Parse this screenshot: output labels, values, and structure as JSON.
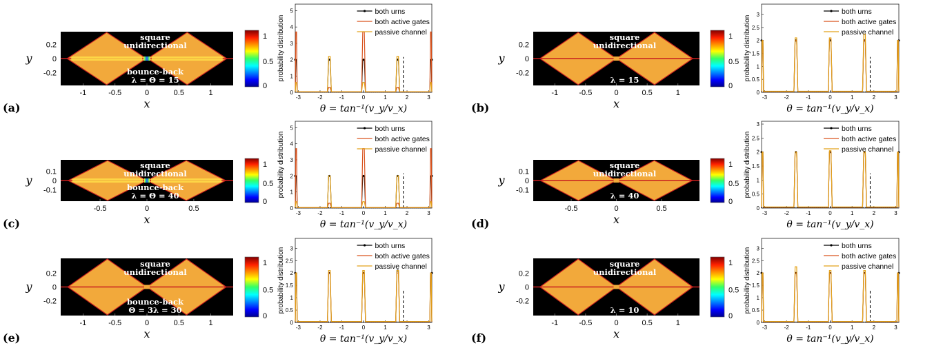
{
  "colors": {
    "background": "#000000",
    "cavity_fill": "#f2a93b",
    "cavity_edge": "#c81e1e",
    "urns_line": "#000000",
    "gates_line": "#d9531e",
    "channel_line": "#e3a21a",
    "dashed_line": "#000000"
  },
  "colorbar": {
    "ticks": [
      "1",
      "0.5",
      "0"
    ]
  },
  "panels": [
    {
      "label": "a",
      "heatmap": {
        "ylabel": "y",
        "xlabel": "x",
        "xticks": [
          "-1",
          "-0.5",
          "0",
          "0.5",
          "1"
        ],
        "yticks": [
          "0.2",
          "0",
          "-0.2"
        ],
        "text_top_1": "square",
        "text_top_2": "unidirectional",
        "text_bottom_1": "bounce-back",
        "text_bottom_2": "λ = Θ = 15",
        "channel": "hot"
      },
      "dist": {
        "ylabel": "probability distribution",
        "xlabel": "θ = tan⁻¹(v_y/v_x)",
        "xticks": [
          "-3",
          "-2",
          "-1",
          "0",
          "1",
          "2",
          "3"
        ],
        "yticks": [
          "0",
          "1",
          "2",
          "3",
          "4",
          "5"
        ],
        "legend": [
          "both urns",
          "both active gates",
          "passive channel"
        ]
      }
    },
    {
      "label": "b",
      "heatmap": {
        "ylabel": "y",
        "xlabel": "x",
        "xticks": [
          "-1",
          "-0.5",
          "0",
          "0.5",
          "1"
        ],
        "yticks": [
          "0.2",
          "0",
          "-0.2"
        ],
        "text_top_1": "square",
        "text_top_2": "unidirectional",
        "text_bottom_1": "",
        "text_bottom_2": "λ = 15",
        "channel": "flat"
      },
      "dist": {
        "ylabel": "probability distribution",
        "xlabel": "θ = tan⁻¹(v_y/v_x)",
        "xticks": [
          "-3",
          "-2",
          "-1",
          "0",
          "1",
          "2",
          "3"
        ],
        "yticks": [
          "0",
          "0.5",
          "1",
          "1.5",
          "2",
          "2.5",
          "3"
        ],
        "legend": [
          "both urns",
          "both active gates",
          "passive channel"
        ]
      }
    },
    {
      "label": "c",
      "heatmap": {
        "ylabel": "y",
        "xlabel": "x",
        "xticks": [
          "-0.5",
          "0",
          "0.5"
        ],
        "yticks": [
          "0.1",
          "0",
          "-0.1"
        ],
        "text_top_1": "square",
        "text_top_2": "unidirectional",
        "text_bottom_1": "bounce-back",
        "text_bottom_2": "λ = Θ = 40",
        "channel": "hot"
      },
      "dist": {
        "ylabel": "probability distribution",
        "xlabel": "θ = tan⁻¹(v_y/v_x)",
        "xticks": [
          "-3",
          "-2",
          "-1",
          "0",
          "1",
          "2",
          "3"
        ],
        "yticks": [
          "0",
          "1",
          "2",
          "3",
          "4",
          "5"
        ],
        "legend": [
          "both urns",
          "both active gates",
          "passive channel"
        ]
      }
    },
    {
      "label": "d",
      "heatmap": {
        "ylabel": "y",
        "xlabel": "x",
        "xticks": [
          "-0.5",
          "0",
          "0.5"
        ],
        "yticks": [
          "0.1",
          "0",
          "-0.1"
        ],
        "text_top_1": "square",
        "text_top_2": "unidirectional",
        "text_bottom_1": "",
        "text_bottom_2": "λ = 40",
        "channel": "flat"
      },
      "dist": {
        "ylabel": "probability distribution",
        "xlabel": "θ = tan⁻¹(v_y/v_x)",
        "xticks": [
          "-3",
          "-2",
          "-1",
          "0",
          "1",
          "2",
          "3"
        ],
        "yticks": [
          "0",
          "0.5",
          "1",
          "1.5",
          "2",
          "2.5",
          "3"
        ],
        "legend": [
          "both urns",
          "both active gates",
          "passive channel"
        ]
      }
    },
    {
      "label": "e",
      "heatmap": {
        "ylabel": "y",
        "xlabel": "x",
        "xticks": [
          "-1",
          "-0.5",
          "0",
          "0.5",
          "1"
        ],
        "yticks": [
          "0.2",
          "0",
          "-0.2"
        ],
        "text_top_1": "square",
        "text_top_2": "unidirectional",
        "text_bottom_1": "bounce-back",
        "text_bottom_2": "Θ = 3λ = 30",
        "channel": "flat"
      },
      "dist": {
        "ylabel": "probability distribution",
        "xlabel": "θ = tan⁻¹(v_y/v_x)",
        "xticks": [
          "-3",
          "-2",
          "-1",
          "0",
          "1",
          "2",
          "3"
        ],
        "yticks": [
          "0",
          "0.5",
          "1",
          "1.5",
          "2",
          "2.5",
          "3"
        ],
        "legend": [
          "both urns",
          "both active gates",
          "passive channel"
        ]
      }
    },
    {
      "label": "f",
      "heatmap": {
        "ylabel": "y",
        "xlabel": "x",
        "xticks": [
          "-1",
          "-0.5",
          "0",
          "0.5",
          "1"
        ],
        "yticks": [
          "0.2",
          "0",
          "-0.2"
        ],
        "text_top_1": "square",
        "text_top_2": "unidirectional",
        "text_bottom_1": "",
        "text_bottom_2": "λ = 10",
        "channel": "flat"
      },
      "dist": {
        "ylabel": "probability distribution",
        "xlabel": "θ = tan⁻¹(v_y/v_x)",
        "xticks": [
          "-3",
          "-2",
          "-1",
          "0",
          "1",
          "2",
          "3"
        ],
        "yticks": [
          "0",
          "0.5",
          "1",
          "1.5",
          "2",
          "2.5",
          "3"
        ],
        "legend": [
          "both urns",
          "both active gates",
          "passive channel"
        ]
      }
    }
  ],
  "chart_data": [
    {
      "panel": "a",
      "type": "line",
      "xlabel": "θ = tan⁻¹(v_y/v_x)",
      "ylabel": "probability distribution",
      "xlim": [
        -3.1416,
        3.1416
      ],
      "ylim": [
        0,
        5.4
      ],
      "vline": 1.83,
      "series": [
        {
          "name": "both urns",
          "peaks": [
            [
              -3.1416,
              2.0
            ],
            [
              -1.5708,
              2.0
            ],
            [
              0,
              2.0
            ],
            [
              1.5708,
              2.0
            ],
            [
              3.1416,
              2.0
            ]
          ]
        },
        {
          "name": "both active gates",
          "peaks": [
            [
              -3.1416,
              3.7
            ],
            [
              -1.5708,
              0.3
            ],
            [
              0,
              3.7
            ],
            [
              1.5708,
              0.3
            ],
            [
              3.1416,
              3.7
            ]
          ]
        },
        {
          "name": "passive channel",
          "peaks": [
            [
              -3.1416,
              0.6
            ],
            [
              -1.5708,
              2.2
            ],
            [
              0,
              0.6
            ],
            [
              1.5708,
              2.2
            ],
            [
              3.1416,
              0.6
            ]
          ]
        }
      ]
    },
    {
      "panel": "b",
      "type": "line",
      "xlabel": "θ = tan⁻¹(v_y/v_x)",
      "ylabel": "probability distribution",
      "xlim": [
        -3.1416,
        3.1416
      ],
      "ylim": [
        0,
        3.4
      ],
      "vline": 1.83,
      "series": [
        {
          "name": "both urns",
          "peaks": [
            [
              -3.1416,
              2.0
            ],
            [
              -1.5708,
              2.0
            ],
            [
              0,
              2.0
            ],
            [
              1.5708,
              2.0
            ],
            [
              3.1416,
              2.0
            ]
          ]
        },
        {
          "name": "both active gates",
          "peaks": [
            [
              -3.1416,
              2.0
            ],
            [
              -1.5708,
              2.0
            ],
            [
              0,
              2.05
            ],
            [
              1.5708,
              2.0
            ],
            [
              3.1416,
              2.0
            ]
          ]
        },
        {
          "name": "passive channel",
          "peaks": [
            [
              -3.1416,
              2.0
            ],
            [
              -1.5708,
              2.1
            ],
            [
              0,
              2.1
            ],
            [
              1.5708,
              2.25
            ],
            [
              3.1416,
              2.0
            ]
          ]
        }
      ]
    },
    {
      "panel": "c",
      "type": "line",
      "xlabel": "θ = tan⁻¹(v_y/v_x)",
      "ylabel": "probability distribution",
      "xlim": [
        -3.1416,
        3.1416
      ],
      "ylim": [
        0,
        5.4
      ],
      "vline": 1.83,
      "series": [
        {
          "name": "both urns",
          "peaks": [
            [
              -3.1416,
              2.0
            ],
            [
              -1.5708,
              2.0
            ],
            [
              0,
              2.0
            ],
            [
              1.5708,
              2.0
            ],
            [
              3.1416,
              2.0
            ]
          ]
        },
        {
          "name": "both active gates",
          "peaks": [
            [
              -3.1416,
              3.7
            ],
            [
              -1.5708,
              0.3
            ],
            [
              0,
              3.7
            ],
            [
              1.5708,
              0.3
            ],
            [
              3.1416,
              3.7
            ]
          ]
        },
        {
          "name": "passive channel",
          "peaks": [
            [
              -3.1416,
              0.4
            ],
            [
              -1.5708,
              2.0
            ],
            [
              0,
              0.4
            ],
            [
              1.5708,
              2.0
            ],
            [
              3.1416,
              0.4
            ]
          ]
        }
      ]
    },
    {
      "panel": "d",
      "type": "line",
      "xlabel": "θ = tan⁻¹(v_y/v_x)",
      "ylabel": "probability distribution",
      "xlim": [
        -3.1416,
        3.1416
      ],
      "ylim": [
        0,
        3.1
      ],
      "vline": 1.83,
      "series": [
        {
          "name": "both urns",
          "peaks": [
            [
              -3.1416,
              2.0
            ],
            [
              -1.5708,
              2.0
            ],
            [
              0,
              2.0
            ],
            [
              1.5708,
              2.0
            ],
            [
              3.1416,
              2.0
            ]
          ]
        },
        {
          "name": "both active gates",
          "peaks": [
            [
              -3.1416,
              2.0
            ],
            [
              -1.5708,
              2.0
            ],
            [
              0,
              2.0
            ],
            [
              1.5708,
              2.0
            ],
            [
              3.1416,
              2.0
            ]
          ]
        },
        {
          "name": "passive channel",
          "peaks": [
            [
              -3.1416,
              2.0
            ],
            [
              -1.5708,
              2.0
            ],
            [
              0,
              2.05
            ],
            [
              1.5708,
              2.0
            ],
            [
              3.1416,
              2.0
            ]
          ]
        }
      ]
    },
    {
      "panel": "e",
      "type": "line",
      "xlabel": "θ = tan⁻¹(v_y/v_x)",
      "ylabel": "probability distribution",
      "xlim": [
        -3.1416,
        3.1416
      ],
      "ylim": [
        0,
        3.4
      ],
      "vline": 1.83,
      "series": [
        {
          "name": "both urns",
          "peaks": [
            [
              -3.1416,
              2.0
            ],
            [
              -1.5708,
              2.0
            ],
            [
              0,
              2.0
            ],
            [
              1.5708,
              2.1
            ],
            [
              3.1416,
              2.0
            ]
          ]
        },
        {
          "name": "both active gates",
          "peaks": [
            [
              -3.1416,
              2.0
            ],
            [
              -1.5708,
              2.0
            ],
            [
              0,
              2.0
            ],
            [
              1.5708,
              2.0
            ],
            [
              3.1416,
              2.0
            ]
          ]
        },
        {
          "name": "passive channel",
          "peaks": [
            [
              -3.1416,
              2.0
            ],
            [
              -1.5708,
              2.1
            ],
            [
              0,
              2.1
            ],
            [
              1.5708,
              2.1
            ],
            [
              3.1416,
              2.0
            ]
          ]
        }
      ]
    },
    {
      "panel": "f",
      "type": "line",
      "xlabel": "θ = tan⁻¹(v_y/v_x)",
      "ylabel": "probability distribution",
      "xlim": [
        -3.1416,
        3.1416
      ],
      "ylim": [
        0,
        3.4
      ],
      "vline": 1.83,
      "series": [
        {
          "name": "both urns",
          "peaks": [
            [
              -3.1416,
              2.0
            ],
            [
              -1.5708,
              2.0
            ],
            [
              0,
              2.0
            ],
            [
              1.5708,
              2.0
            ],
            [
              3.1416,
              2.0
            ]
          ]
        },
        {
          "name": "both active gates",
          "peaks": [
            [
              -3.1416,
              2.0
            ],
            [
              -1.5708,
              2.0
            ],
            [
              0,
              2.0
            ],
            [
              1.5708,
              2.0
            ],
            [
              3.1416,
              2.0
            ]
          ]
        },
        {
          "name": "passive channel",
          "peaks": [
            [
              -3.1416,
              2.0
            ],
            [
              -1.5708,
              2.25
            ],
            [
              0,
              2.1
            ],
            [
              1.5708,
              2.1
            ],
            [
              3.1416,
              2.0
            ]
          ]
        }
      ]
    }
  ]
}
